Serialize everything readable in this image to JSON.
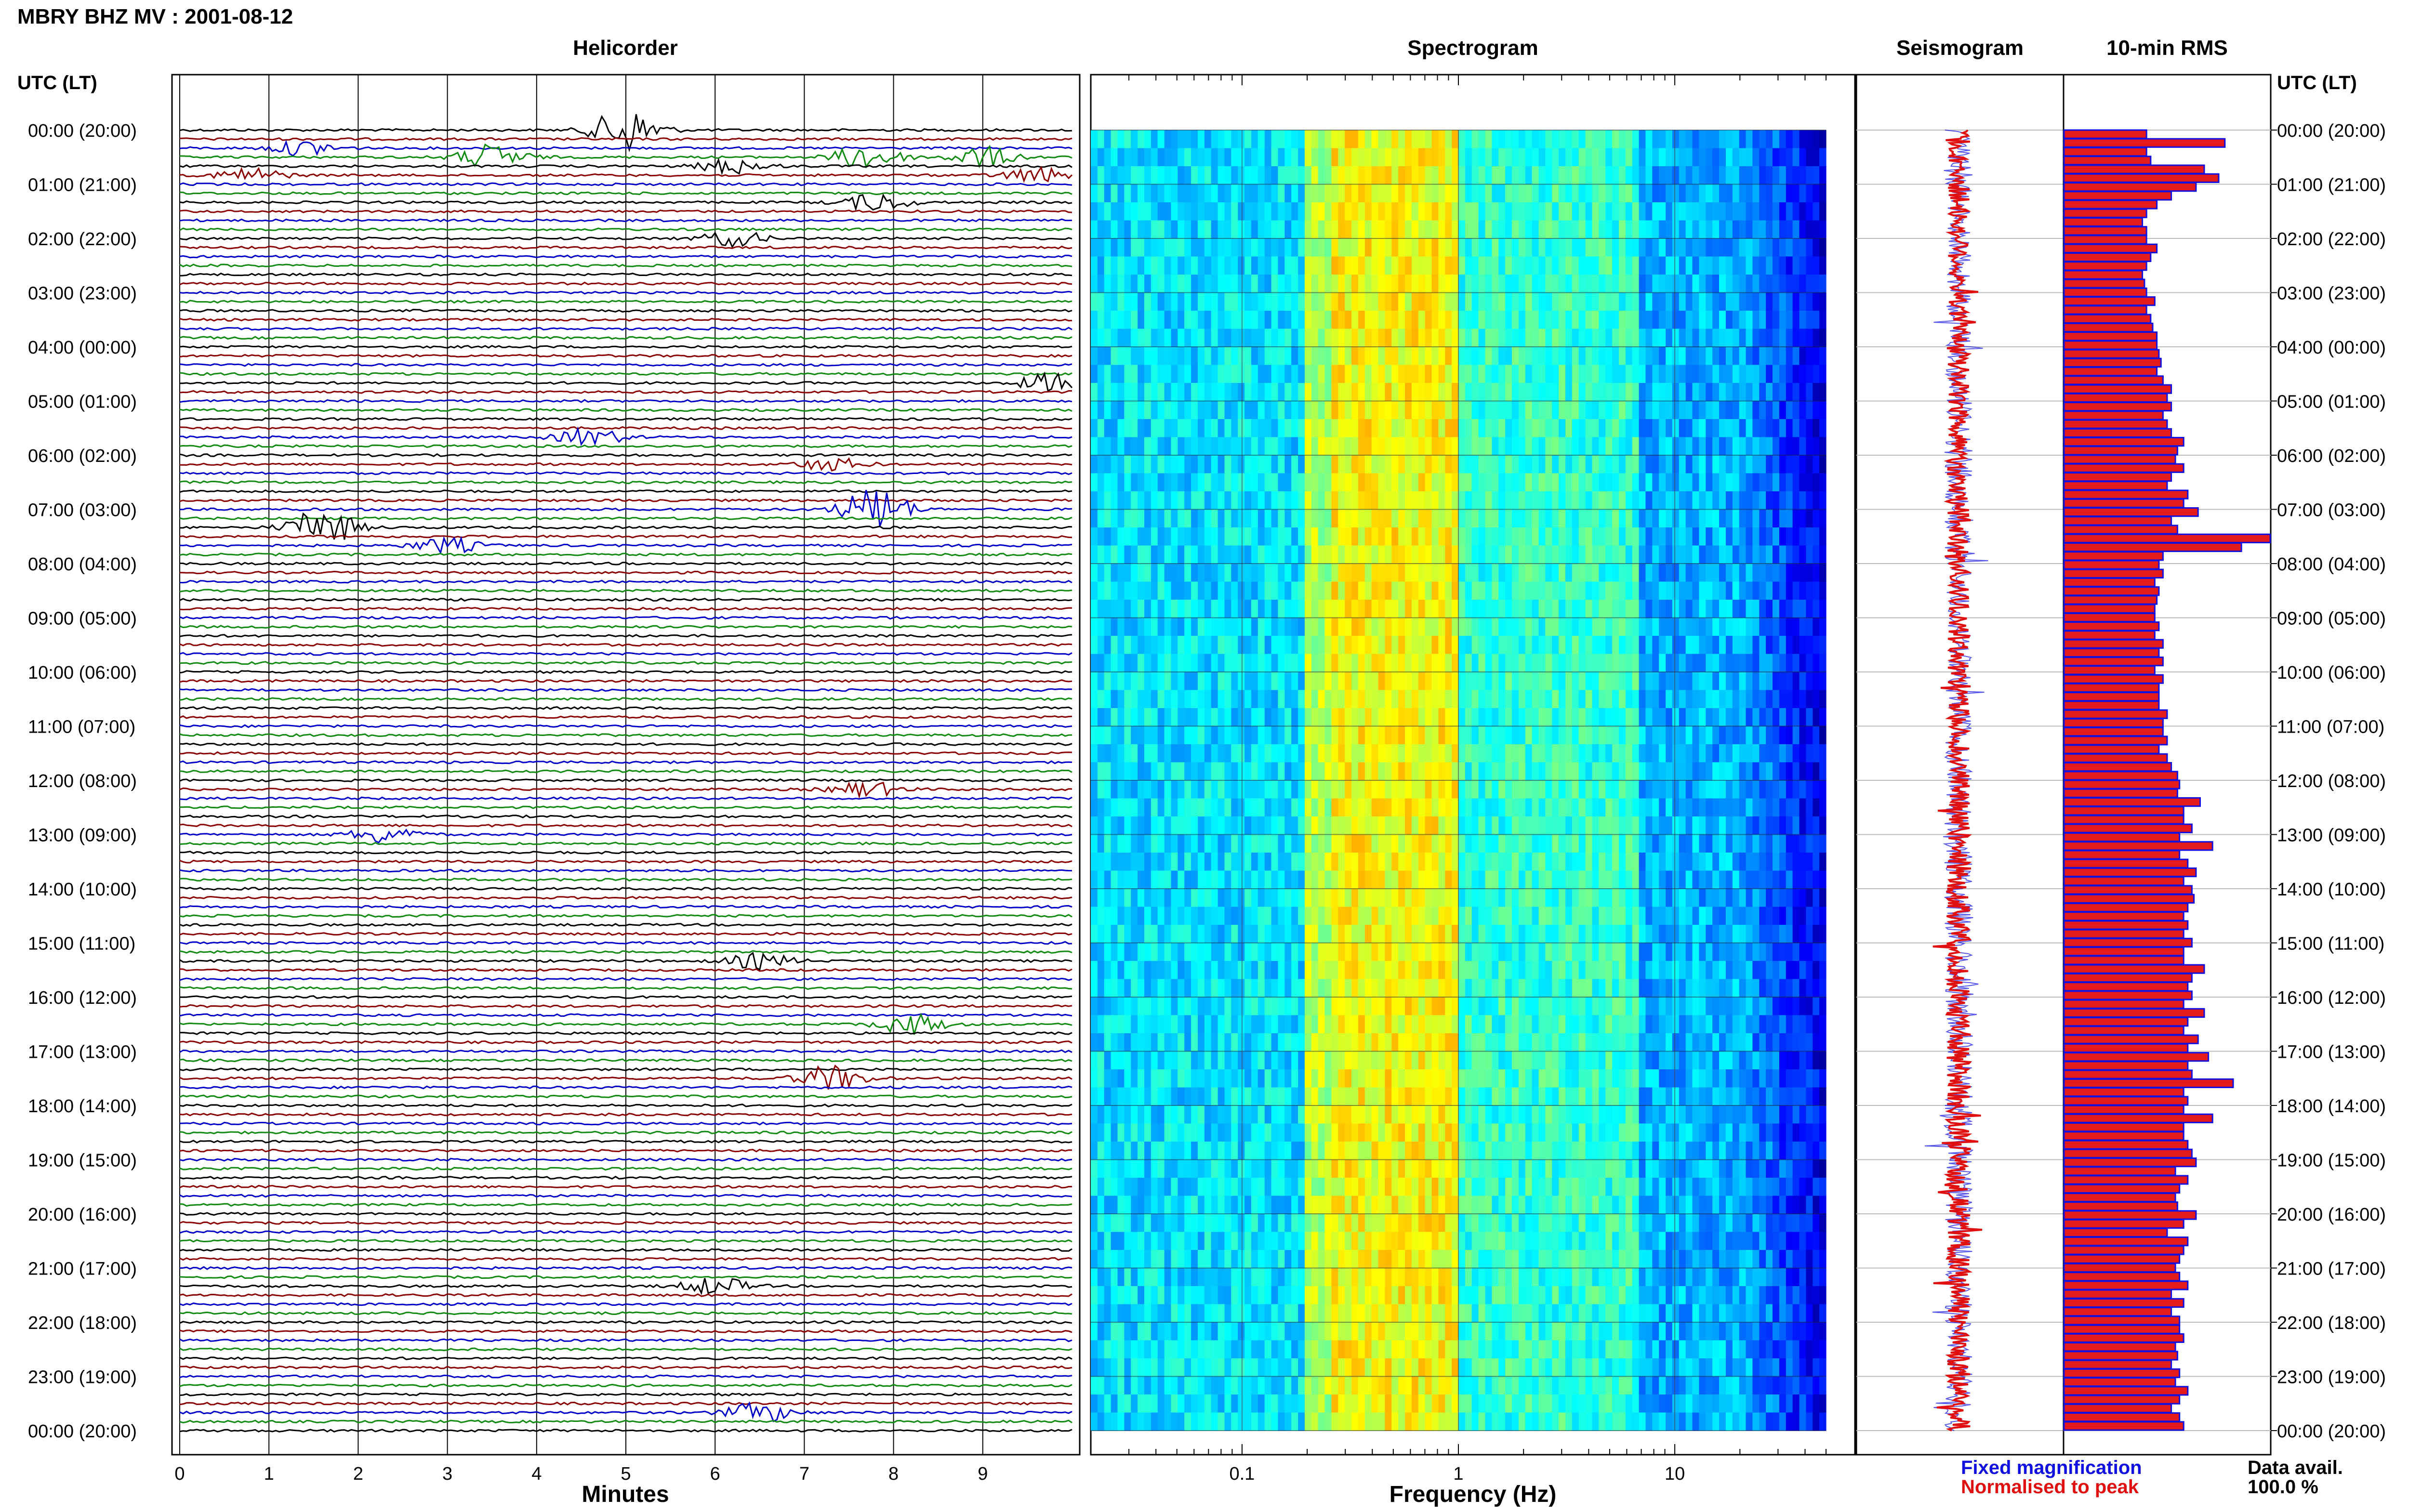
{
  "header": {
    "title": "MBRY BHZ MV : 2001-08-12",
    "left_corner": "UTC (LT)",
    "right_corner": "UTC (LT)"
  },
  "panels": {
    "helicorder": "Helicorder",
    "spectrogram": "Spectrogram",
    "seismogram": "Seismogram",
    "rms": "10-min RMS"
  },
  "legend": {
    "fixed": "Fixed magnification",
    "normalised": "Normalised to peak",
    "data_avail_label": "Data avail.",
    "data_avail_value": "100.0 %"
  },
  "colors": {
    "trace_cycle": [
      "#000000",
      "#8b0000",
      "#0000c8",
      "#108a10"
    ],
    "rms_fill": "#e41a1c",
    "rms_edge": "#1010e0",
    "legend_blue": "#1010e0",
    "legend_red": "#e01010"
  },
  "chart_data": [
    {
      "type": "line",
      "panel": "helicorder",
      "xlabel": "Minutes",
      "ylabel": "UTC (LT)",
      "xlim": [
        0,
        10
      ],
      "xticks": [
        "0",
        "1",
        "2",
        "3",
        "4",
        "5",
        "6",
        "7",
        "8",
        "9"
      ],
      "yticks": [
        "00:00 (20:00)",
        "01:00 (21:00)",
        "02:00 (22:00)",
        "03:00 (23:00)",
        "04:00 (00:00)",
        "05:00 (01:00)",
        "06:00 (02:00)",
        "07:00 (03:00)",
        "08:00 (04:00)",
        "09:00 (05:00)",
        "10:00 (06:00)",
        "11:00 (07:00)",
        "12:00 (08:00)",
        "13:00 (09:00)",
        "14:00 (10:00)",
        "15:00 (11:00)",
        "16:00 (12:00)",
        "17:00 (13:00)",
        "18:00 (14:00)",
        "19:00 (15:00)",
        "20:00 (16:00)",
        "21:00 (17:00)",
        "22:00 (18:00)",
        "23:00 (19:00)",
        "00:00 (20:00)"
      ],
      "rows_per_hour": 6,
      "hours": 24,
      "events": [
        {
          "hour": 0.0,
          "minute": 5.0,
          "amplitude": 1.8
        },
        {
          "hour": 0.5,
          "minute": 3.5,
          "amplitude": 1.0
        },
        {
          "hour": 0.5,
          "minute": 7.7,
          "amplitude": 1.0
        },
        {
          "hour": 0.5,
          "minute": 9.0,
          "amplitude": 0.8
        },
        {
          "hour": 0.33,
          "minute": 1.4,
          "amplitude": 0.6
        },
        {
          "hour": 0.83,
          "minute": 0.8,
          "amplitude": 0.6
        },
        {
          "hour": 0.67,
          "minute": 6.2,
          "amplitude": 0.6
        },
        {
          "hour": 0.83,
          "minute": 9.6,
          "amplitude": 0.6
        },
        {
          "hour": 1.33,
          "minute": 7.8,
          "amplitude": 0.7
        },
        {
          "hour": 2.0,
          "minute": 6.2,
          "amplitude": 0.6
        },
        {
          "hour": 4.67,
          "minute": 9.8,
          "amplitude": 0.8
        },
        {
          "hour": 5.67,
          "minute": 4.6,
          "amplitude": 0.7
        },
        {
          "hour": 6.17,
          "minute": 7.3,
          "amplitude": 0.5
        },
        {
          "hour": 7.33,
          "minute": 1.6,
          "amplitude": 1.5
        },
        {
          "hour": 7.0,
          "minute": 7.8,
          "amplitude": 1.8
        },
        {
          "hour": 7.67,
          "minute": 3.0,
          "amplitude": 0.6
        },
        {
          "hour": 12.17,
          "minute": 7.7,
          "amplitude": 0.6
        },
        {
          "hour": 13.0,
          "minute": 2.3,
          "amplitude": 0.7
        },
        {
          "hour": 15.33,
          "minute": 6.5,
          "amplitude": 0.6
        },
        {
          "hour": 16.5,
          "minute": 8.2,
          "amplitude": 0.8
        },
        {
          "hour": 17.5,
          "minute": 7.3,
          "amplitude": 1.0
        },
        {
          "hour": 21.33,
          "minute": 6.0,
          "amplitude": 0.7
        },
        {
          "hour": 23.67,
          "minute": 6.5,
          "amplitude": 0.8
        }
      ]
    },
    {
      "type": "heatmap",
      "panel": "spectrogram",
      "xlabel": "Frequency (Hz)",
      "xscale": "log",
      "xlim": [
        0.02,
        50
      ],
      "xticks": [
        "0.1",
        "1",
        "10"
      ],
      "colormap": "jet",
      "bands": [
        {
          "from_hz": 0.02,
          "to_hz": 0.2,
          "level": 0.35
        },
        {
          "from_hz": 0.2,
          "to_hz": 0.25,
          "level": 0.55
        },
        {
          "from_hz": 0.25,
          "to_hz": 1.0,
          "level": 0.62
        },
        {
          "from_hz": 1.0,
          "to_hz": 7.0,
          "level": 0.42
        },
        {
          "from_hz": 7.0,
          "to_hz": 20.0,
          "level": 0.3
        },
        {
          "from_hz": 20.0,
          "to_hz": 50.0,
          "level": 0.1
        }
      ]
    },
    {
      "type": "line",
      "panel": "seismogram",
      "description_series": [
        {
          "name": "Fixed magnification",
          "color": "#1010e0"
        },
        {
          "name": "Normalised to peak",
          "color": "#e01010"
        }
      ]
    },
    {
      "type": "bar",
      "panel": "rms",
      "orientation": "horizontal",
      "interval_minutes": 10,
      "values": [
        40,
        78,
        40,
        42,
        68,
        75,
        64,
        52,
        45,
        40,
        38,
        40,
        40,
        45,
        42,
        40,
        38,
        39,
        40,
        44,
        40,
        42,
        43,
        45,
        45,
        46,
        47,
        45,
        48,
        52,
        50,
        52,
        48,
        50,
        52,
        58,
        55,
        54,
        58,
        52,
        50,
        60,
        58,
        65,
        52,
        55,
        100,
        86,
        48,
        46,
        48,
        44,
        46,
        45,
        44,
        44,
        46,
        44,
        48,
        46,
        48,
        44,
        48,
        46,
        46,
        46,
        50,
        48,
        48,
        50,
        46,
        50,
        52,
        55,
        56,
        55,
        66,
        58,
        58,
        62,
        56,
        72,
        56,
        60,
        64,
        58,
        62,
        63,
        60,
        58,
        60,
        58,
        62,
        58,
        58,
        68,
        62,
        60,
        62,
        58,
        68,
        60,
        58,
        65,
        60,
        70,
        60,
        62,
        82,
        58,
        60,
        58,
        72,
        58,
        58,
        60,
        62,
        64,
        54,
        60,
        56,
        54,
        55,
        64,
        58,
        50,
        60,
        58,
        56,
        54,
        56,
        60,
        52,
        58,
        52,
        56,
        56,
        58,
        54,
        55,
        52,
        56,
        54,
        60,
        56,
        52,
        56,
        58
      ]
    }
  ]
}
